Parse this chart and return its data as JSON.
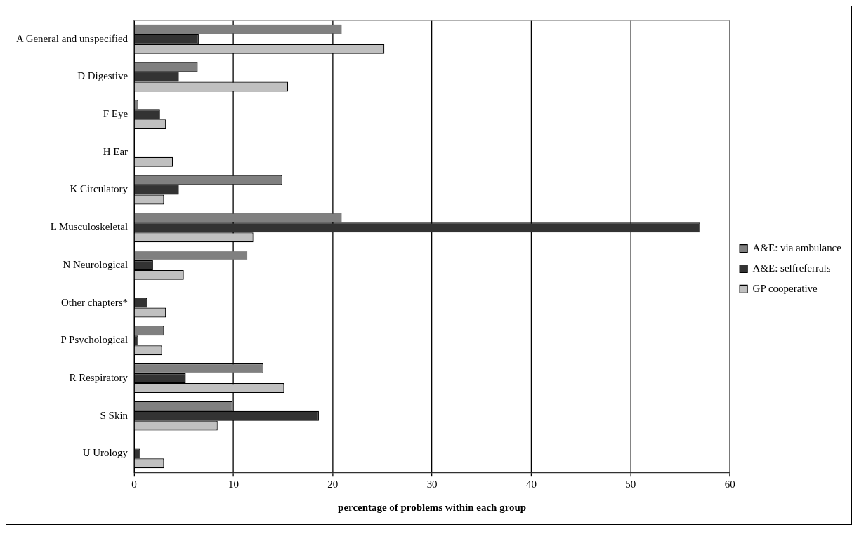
{
  "chart_data": {
    "type": "bar",
    "orientation": "horizontal",
    "xlabel": "percentage of problems within each group",
    "categories": [
      "A General and unspecified",
      "D Digestive",
      "F Eye",
      "H Ear",
      "K Circulatory",
      "L Musculoskeletal",
      "N Neurological",
      "Other chapters*",
      "P Psychological",
      "R Respiratory",
      "S Skin",
      "U Urology"
    ],
    "series": [
      {
        "name": "A&E: via ambulance",
        "color": "#808080",
        "values": [
          20.9,
          6.4,
          0.4,
          0,
          14.9,
          20.9,
          11.4,
          0,
          3.0,
          13.0,
          9.9,
          0
        ]
      },
      {
        "name": "A&E: selfreferrals",
        "color": "#333333",
        "values": [
          6.5,
          4.5,
          2.6,
          0,
          4.5,
          57,
          1.9,
          1.3,
          0.4,
          5.2,
          18.6,
          0.6
        ]
      },
      {
        "name": "GP cooperative",
        "color": "#c0c0c0",
        "values": [
          25.2,
          15.5,
          3.2,
          3.9,
          3.0,
          12.0,
          5.0,
          3.2,
          2.8,
          15.1,
          8.4,
          3.0
        ]
      }
    ],
    "xlim": [
      0,
      60
    ],
    "xticks": [
      0,
      10,
      20,
      30,
      40,
      50,
      60
    ],
    "grid": "x",
    "legend": "right"
  }
}
